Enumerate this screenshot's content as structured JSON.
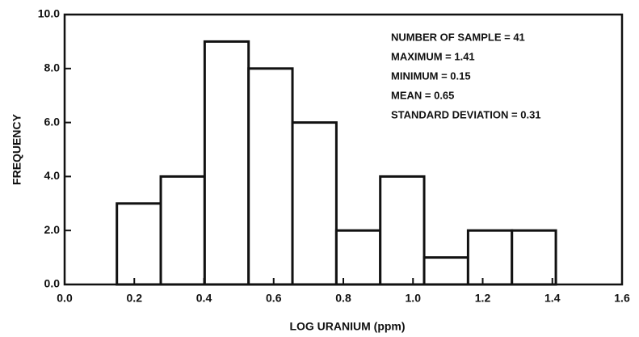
{
  "chart_data": {
    "type": "histogram",
    "xlabel": "LOG URANIUM (ppm)",
    "ylabel": "FREQUENCY",
    "bins": [
      0.15,
      0.276,
      0.402,
      0.528,
      0.654,
      0.78,
      0.906,
      1.032,
      1.158,
      1.284,
      1.41
    ],
    "values": [
      3,
      4,
      9,
      8,
      6,
      2,
      4,
      1,
      2,
      2
    ],
    "color": "#ffffff",
    "xlim": [
      0,
      1.6
    ],
    "xticks": [
      {
        "value": 0,
        "label": "0.0"
      },
      0.2,
      0.4,
      0.6,
      0.8,
      {
        "value": 1,
        "label": "1.0"
      },
      1.2,
      1.4,
      1.6
    ],
    "ylim": [
      0,
      10
    ],
    "yticks": [
      {
        "value": 0,
        "label": "0.0"
      },
      {
        "value": 2,
        "label": "2.0"
      },
      {
        "value": 4,
        "label": "4.0"
      },
      {
        "value": 6,
        "label": "6.0"
      },
      {
        "value": 8,
        "label": "8.0"
      },
      {
        "value": 10,
        "label": "10.0"
      }
    ],
    "annotations": [
      "NUMBER OF SAMPLE = 41",
      "MAXIMUM = 1.41",
      "MINIMUM = 0.15",
      "MEAN = 0.65",
      "STANDARD DEVIATION = 0.31"
    ]
  }
}
